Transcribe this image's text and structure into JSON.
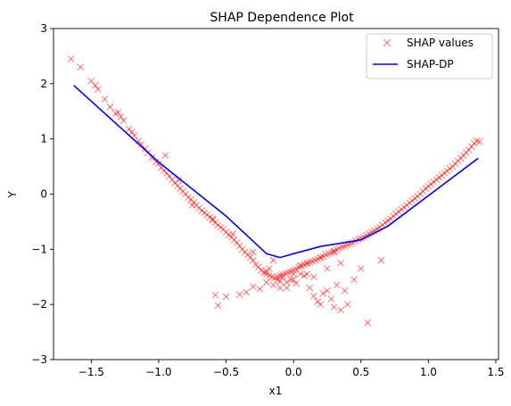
{
  "chart_data": {
    "type": "scatter",
    "title": "SHAP Dependence Plot",
    "xlabel": "x1",
    "ylabel": "Y",
    "xlim": [
      -1.78,
      1.52
    ],
    "ylim": [
      -3,
      3
    ],
    "xticks": [
      -1.5,
      -1.0,
      -0.5,
      0.0,
      0.5,
      1.0,
      1.5
    ],
    "xtick_labels": [
      "−1.5",
      "−1.0",
      "−0.5",
      "0.0",
      "0.5",
      "1.0",
      "1.5"
    ],
    "yticks": [
      -3,
      -2,
      -1,
      0,
      1,
      2,
      3
    ],
    "ytick_labels": [
      "−3",
      "−2",
      "−1",
      "0",
      "1",
      "2",
      "3"
    ],
    "grid": false,
    "legend_position": "top-right",
    "series": [
      {
        "name": "SHAP values",
        "kind": "scatter",
        "marker": "x",
        "color": "#ff0000",
        "x": [
          -1.65,
          -1.58,
          -1.5,
          -1.47,
          -1.45,
          -1.4,
          -1.36,
          -1.32,
          -1.3,
          -1.28,
          -1.26,
          -1.22,
          -1.2,
          -1.18,
          -1.15,
          -1.13,
          -1.1,
          -1.08,
          -1.05,
          -1.02,
          -1.0,
          -0.98,
          -0.96,
          -0.94,
          -0.92,
          -0.9,
          -0.88,
          -0.86,
          -0.84,
          -0.82,
          -0.8,
          -0.78,
          -0.76,
          -0.74,
          -0.72,
          -0.7,
          -0.68,
          -0.66,
          -0.64,
          -0.62,
          -0.6,
          -0.58,
          -0.56,
          -0.54,
          -0.52,
          -0.5,
          -0.48,
          -0.46,
          -0.44,
          -0.42,
          -0.4,
          -0.38,
          -0.36,
          -0.34,
          -0.32,
          -0.3,
          -0.28,
          -0.26,
          -0.24,
          -0.22,
          -0.2,
          -0.18,
          -0.16,
          -0.14,
          -0.12,
          -0.1,
          -0.08,
          -0.06,
          -0.04,
          -0.02,
          0.0,
          0.02,
          0.04,
          0.06,
          0.08,
          0.1,
          0.12,
          0.14,
          0.16,
          0.18,
          0.2,
          0.22,
          0.24,
          0.26,
          0.28,
          0.3,
          0.32,
          0.34,
          0.36,
          0.38,
          0.4,
          0.42,
          0.44,
          0.46,
          0.48,
          0.5,
          0.52,
          0.54,
          0.56,
          0.58,
          0.6,
          0.62,
          0.64,
          0.66,
          0.68,
          0.7,
          0.72,
          0.74,
          0.76,
          0.78,
          0.8,
          0.82,
          0.84,
          0.86,
          0.88,
          0.9,
          0.92,
          0.94,
          0.96,
          0.98,
          1.0,
          1.02,
          1.04,
          1.06,
          1.08,
          1.1,
          1.12,
          1.14,
          1.16,
          1.18,
          1.2,
          1.22,
          1.24,
          1.26,
          1.28,
          1.3,
          1.32,
          1.34,
          1.36,
          1.38,
          -0.58,
          -0.56,
          -0.5,
          -0.4,
          -0.35,
          -0.3,
          -0.25,
          -0.2,
          -0.15,
          -0.12,
          -0.1,
          -0.08,
          -0.05,
          -0.02,
          0.02,
          0.05,
          0.08,
          0.12,
          0.15,
          0.18,
          0.2,
          0.22,
          0.25,
          0.28,
          0.3,
          0.32,
          0.35,
          0.38,
          0.4,
          0.45,
          0.5,
          0.55,
          0.65,
          -0.95,
          -0.85,
          -0.75,
          -0.6,
          -0.45,
          -0.3,
          -0.18,
          -0.1,
          0.0,
          0.1,
          0.2,
          0.3,
          -0.2,
          -0.05,
          0.05,
          0.15,
          0.25,
          0.35,
          -0.15,
          0.0,
          0.1
        ],
        "y": [
          2.45,
          2.3,
          2.05,
          1.97,
          1.9,
          1.72,
          1.58,
          1.46,
          1.48,
          1.4,
          1.33,
          1.18,
          1.12,
          1.06,
          0.96,
          0.9,
          0.82,
          0.75,
          0.66,
          0.58,
          0.55,
          0.48,
          0.42,
          0.38,
          0.32,
          0.26,
          0.2,
          0.15,
          0.1,
          0.05,
          0.0,
          -0.06,
          -0.1,
          -0.15,
          -0.2,
          -0.25,
          -0.3,
          -0.34,
          -0.38,
          -0.42,
          -0.47,
          -0.52,
          -0.56,
          -0.6,
          -0.64,
          -0.69,
          -0.74,
          -0.78,
          -0.83,
          -0.88,
          -0.94,
          -1.0,
          -1.05,
          -1.1,
          -1.15,
          -1.2,
          -1.28,
          -1.32,
          -1.38,
          -1.42,
          -1.45,
          -1.48,
          -1.5,
          -1.52,
          -1.5,
          -1.48,
          -1.46,
          -1.44,
          -1.42,
          -1.4,
          -1.38,
          -1.36,
          -1.33,
          -1.3,
          -1.28,
          -1.26,
          -1.24,
          -1.22,
          -1.2,
          -1.18,
          -1.15,
          -1.13,
          -1.1,
          -1.08,
          -1.06,
          -1.03,
          -1.01,
          -0.98,
          -0.96,
          -0.94,
          -0.92,
          -0.9,
          -0.88,
          -0.85,
          -0.82,
          -0.8,
          -0.78,
          -0.75,
          -0.72,
          -0.69,
          -0.66,
          -0.63,
          -0.6,
          -0.56,
          -0.52,
          -0.48,
          -0.45,
          -0.4,
          -0.36,
          -0.32,
          -0.28,
          -0.24,
          -0.2,
          -0.16,
          -0.12,
          -0.08,
          -0.04,
          0.0,
          0.05,
          0.1,
          0.14,
          0.18,
          0.22,
          0.26,
          0.3,
          0.34,
          0.38,
          0.42,
          0.46,
          0.5,
          0.55,
          0.6,
          0.65,
          0.7,
          0.75,
          0.8,
          0.86,
          0.92,
          0.96,
          0.95,
          -1.83,
          -2.02,
          -1.86,
          -1.82,
          -1.78,
          -1.68,
          -1.72,
          -1.6,
          -1.65,
          -1.55,
          -1.7,
          -1.5,
          -1.6,
          -1.55,
          -1.62,
          -1.45,
          -1.48,
          -1.7,
          -1.85,
          -1.95,
          -2.0,
          -1.8,
          -1.75,
          -1.9,
          -2.05,
          -1.65,
          -2.1,
          -1.75,
          -2.0,
          -1.55,
          -1.35,
          -2.33,
          -1.2,
          0.7,
          0.25,
          -0.2,
          -0.45,
          -0.72,
          -1.05,
          -1.35,
          -1.58,
          -1.45,
          -1.25,
          -1.15,
          -1.05,
          -1.4,
          -1.7,
          -1.3,
          -1.5,
          -1.35,
          -1.25,
          -1.2,
          -1.55,
          -1.45
        ]
      },
      {
        "name": "SHAP-DP",
        "kind": "line",
        "color": "#0000ff",
        "x": [
          -1.63,
          -1.0,
          -0.5,
          -0.2,
          -0.1,
          0.0,
          0.2,
          0.5,
          0.7,
          1.37
        ],
        "y": [
          1.97,
          0.58,
          -0.4,
          -1.08,
          -1.15,
          -1.08,
          -0.95,
          -0.83,
          -0.58,
          0.65
        ]
      }
    ]
  }
}
